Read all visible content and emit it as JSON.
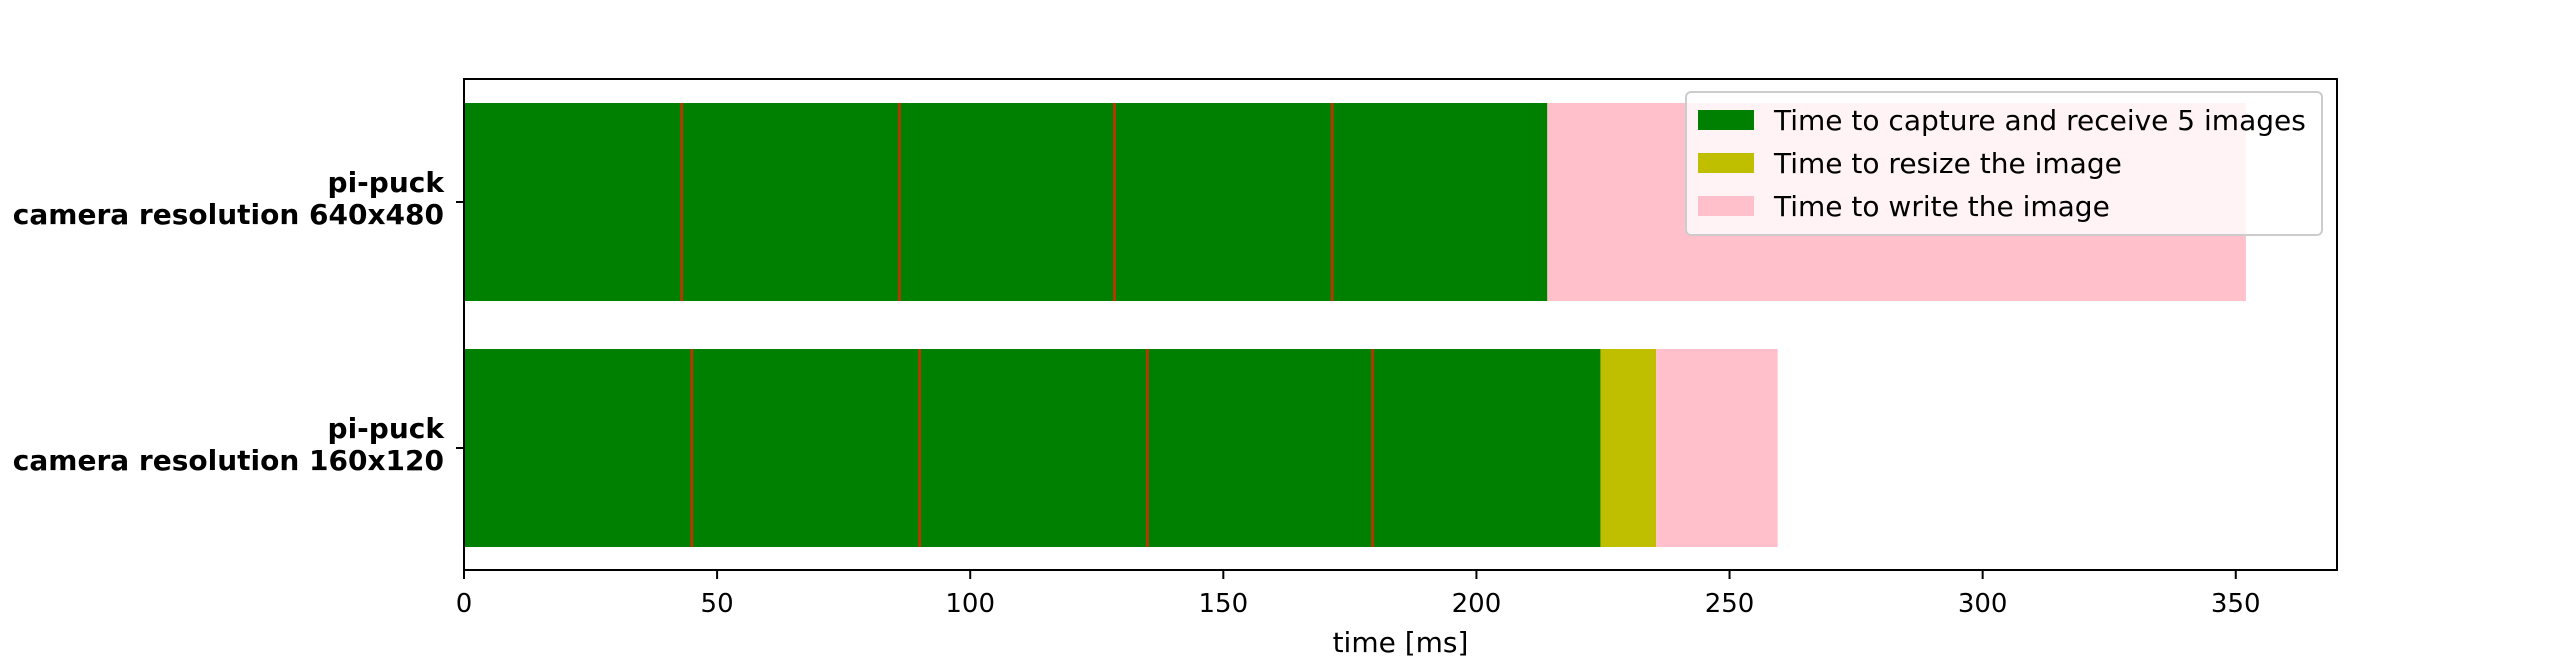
{
  "chart_data": {
    "type": "bar",
    "orientation": "horizontal",
    "stacked": true,
    "categories": [
      [
        "pi-puck",
        "camera resolution 640x480"
      ],
      [
        "pi-puck",
        "camera resolution 160x120"
      ]
    ],
    "series": [
      {
        "name": "Time to capture and receive 5 images",
        "color": "#008000",
        "values": [
          214,
          224.5
        ],
        "sub_segments": [
          [
            43,
            86,
            128.5,
            171.5
          ],
          [
            45,
            90,
            135,
            179.5
          ]
        ],
        "divider_color": "#b03a00"
      },
      {
        "name": "Time to resize the image",
        "color": "#bfbf00",
        "values": [
          0,
          11
        ]
      },
      {
        "name": "Time to write the image",
        "color": "#ffc0cb",
        "values": [
          138,
          24
        ]
      }
    ],
    "xlabel": "time [ms]",
    "ylabel": "",
    "xlim": [
      0,
      370
    ],
    "xticks": [
      0,
      50,
      100,
      150,
      200,
      250,
      300,
      350
    ],
    "legend_position": "top-right",
    "grid": false
  }
}
